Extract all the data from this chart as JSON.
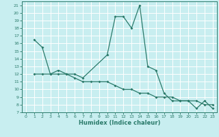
{
  "xlabel": "Humidex (Indice chaleur)",
  "bg_color": "#c8eef0",
  "line_color": "#2a7a6a",
  "grid_color": "#ffffff",
  "xlim": [
    -0.5,
    23.5
  ],
  "ylim": [
    7,
    21.5
  ],
  "xticks": [
    0,
    1,
    2,
    3,
    4,
    5,
    6,
    7,
    8,
    9,
    10,
    11,
    12,
    13,
    14,
    15,
    16,
    17,
    18,
    19,
    20,
    21,
    22,
    23
  ],
  "yticks": [
    7,
    8,
    9,
    10,
    11,
    12,
    13,
    14,
    15,
    16,
    17,
    18,
    19,
    20,
    21
  ],
  "line1_x": [
    1,
    2,
    3,
    4,
    5,
    6,
    7,
    10,
    11,
    12,
    13,
    14,
    15,
    16,
    17,
    18,
    19,
    20,
    21,
    22,
    23
  ],
  "line1_y": [
    16.5,
    15.5,
    12.0,
    12.5,
    12.0,
    12.0,
    11.5,
    14.5,
    19.5,
    19.5,
    18.0,
    21.0,
    13.0,
    12.5,
    9.5,
    8.5,
    8.5,
    8.5,
    7.5,
    8.5,
    7.5
  ],
  "line2_x": [
    1,
    2,
    3,
    4,
    5,
    6,
    7,
    8,
    9,
    10,
    11,
    12,
    13,
    14,
    15,
    16,
    17,
    18,
    19,
    20,
    21,
    22,
    23
  ],
  "line2_y": [
    12.0,
    12.0,
    12.0,
    12.0,
    12.0,
    11.5,
    11.0,
    11.0,
    11.0,
    11.0,
    10.5,
    10.0,
    10.0,
    9.5,
    9.5,
    9.0,
    9.0,
    9.0,
    8.5,
    8.5,
    8.5,
    8.0,
    8.0
  ]
}
